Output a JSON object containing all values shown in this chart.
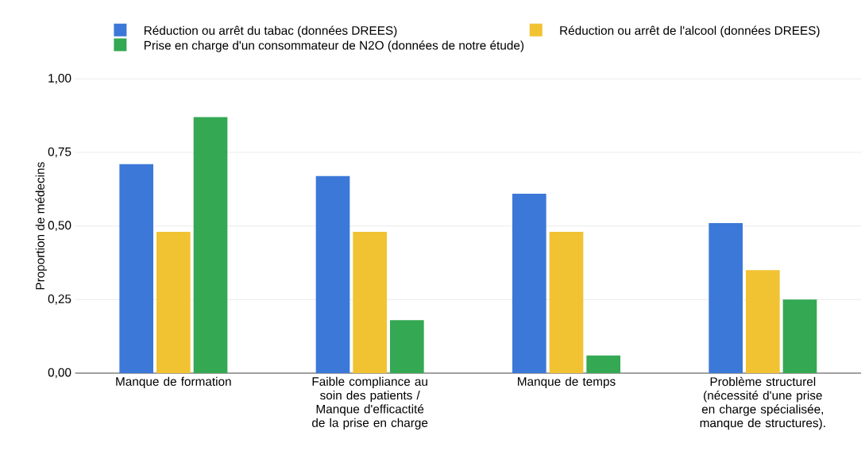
{
  "chart_data": {
    "type": "bar",
    "ylabel": "Proportion de médecins",
    "categories": [
      "Manque de formation",
      "Faible compliance au soin des patients / Manque d'efficactité de la prise en charge",
      "Manque de temps",
      "Problème structurel (nécessité d'une prise en charge spécialisée, manque de structures)."
    ],
    "series": [
      {
        "name": "Réduction ou arrêt du tabac (données DREES)",
        "color": "#3c78d8",
        "values": [
          0.71,
          0.67,
          0.61,
          0.51
        ]
      },
      {
        "name": "Réduction ou arrêt de l'alcool (données DREES)",
        "color": "#f1c232",
        "values": [
          0.48,
          0.48,
          0.48,
          0.35
        ]
      },
      {
        "name": "Prise en charge d'un consommateur de N2O (données de notre étude)",
        "color": "#34a853",
        "values": [
          0.87,
          0.18,
          0.06,
          0.25
        ]
      }
    ],
    "ylim": [
      0,
      1
    ],
    "yticks": [
      {
        "value": 0,
        "label": "0,00"
      },
      {
        "value": 0.25,
        "label": "0,25"
      },
      {
        "value": 0.5,
        "label": "0,50"
      },
      {
        "value": 0.75,
        "label": "0,75"
      },
      {
        "value": 1,
        "label": "1,00"
      }
    ],
    "grid": "y",
    "legend": "top"
  }
}
